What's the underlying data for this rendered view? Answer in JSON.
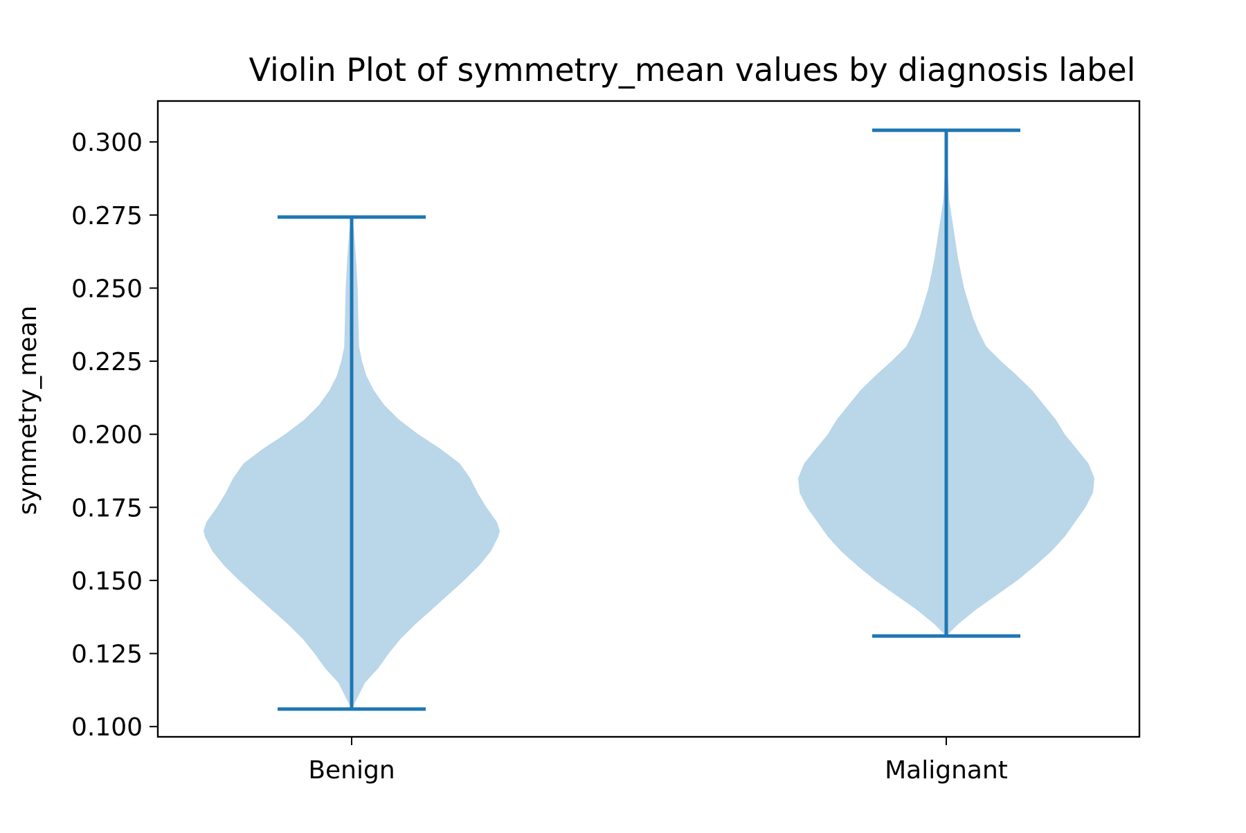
{
  "chart_data": {
    "type": "violin",
    "title": "Violin Plot of symmetry_mean values by diagnosis label",
    "xlabel": "",
    "ylabel": "symmetry_mean",
    "categories": [
      "Benign",
      "Malignant"
    ],
    "ylim": [
      0.0965,
      0.314
    ],
    "yticks": [
      0.1,
      0.125,
      0.15,
      0.175,
      0.2,
      0.225,
      0.25,
      0.275,
      0.3
    ],
    "ytick_labels": [
      "0.100",
      "0.125",
      "0.150",
      "0.175",
      "0.200",
      "0.225",
      "0.250",
      "0.275",
      "0.300"
    ],
    "grid": false,
    "legend": "none",
    "colors": {
      "body": "#bad6e9",
      "line": "#1f77b4"
    },
    "violins": [
      {
        "category": "Benign",
        "min": 0.106,
        "max": 0.2743,
        "density_profile": [
          [
            0.106,
            0.0
          ],
          [
            0.11,
            0.04
          ],
          [
            0.115,
            0.09
          ],
          [
            0.12,
            0.18
          ],
          [
            0.125,
            0.25
          ],
          [
            0.13,
            0.33
          ],
          [
            0.135,
            0.43
          ],
          [
            0.14,
            0.54
          ],
          [
            0.145,
            0.65
          ],
          [
            0.15,
            0.76
          ],
          [
            0.155,
            0.86
          ],
          [
            0.16,
            0.94
          ],
          [
            0.165,
            0.99
          ],
          [
            0.167,
            1.0
          ],
          [
            0.17,
            0.98
          ],
          [
            0.175,
            0.91
          ],
          [
            0.18,
            0.85
          ],
          [
            0.185,
            0.8
          ],
          [
            0.19,
            0.73
          ],
          [
            0.195,
            0.6
          ],
          [
            0.2,
            0.45
          ],
          [
            0.205,
            0.32
          ],
          [
            0.21,
            0.22
          ],
          [
            0.215,
            0.15
          ],
          [
            0.22,
            0.1
          ],
          [
            0.225,
            0.07
          ],
          [
            0.23,
            0.05
          ],
          [
            0.24,
            0.045
          ],
          [
            0.25,
            0.04
          ],
          [
            0.26,
            0.03
          ],
          [
            0.27,
            0.015
          ],
          [
            0.2743,
            0.0
          ]
        ]
      },
      {
        "category": "Malignant",
        "min": 0.131,
        "max": 0.304,
        "density_profile": [
          [
            0.131,
            0.0
          ],
          [
            0.135,
            0.08
          ],
          [
            0.14,
            0.2
          ],
          [
            0.145,
            0.34
          ],
          [
            0.15,
            0.48
          ],
          [
            0.155,
            0.6
          ],
          [
            0.16,
            0.71
          ],
          [
            0.165,
            0.8
          ],
          [
            0.17,
            0.87
          ],
          [
            0.175,
            0.94
          ],
          [
            0.18,
            0.99
          ],
          [
            0.185,
            1.0
          ],
          [
            0.19,
            0.96
          ],
          [
            0.195,
            0.88
          ],
          [
            0.2,
            0.8
          ],
          [
            0.205,
            0.74
          ],
          [
            0.21,
            0.66
          ],
          [
            0.215,
            0.58
          ],
          [
            0.22,
            0.48
          ],
          [
            0.225,
            0.37
          ],
          [
            0.23,
            0.27
          ],
          [
            0.235,
            0.22
          ],
          [
            0.24,
            0.18
          ],
          [
            0.25,
            0.12
          ],
          [
            0.26,
            0.08
          ],
          [
            0.27,
            0.05
          ],
          [
            0.28,
            0.02
          ],
          [
            0.29,
            0.01
          ],
          [
            0.304,
            0.0
          ]
        ]
      }
    ]
  }
}
